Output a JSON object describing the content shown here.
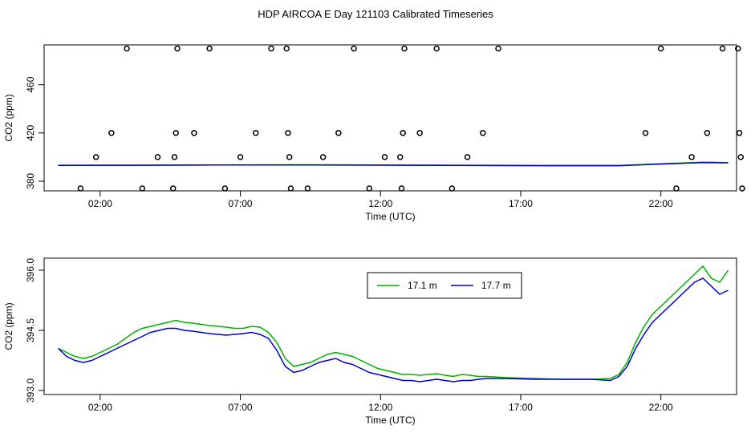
{
  "page_title": "HDP AIRCOA E  Day 121103  Calibrated Timeseries",
  "chart_data": [
    {
      "type": "scatter",
      "title": "",
      "xlabel": "Time (UTC)",
      "ylabel": "CO2 (ppm)",
      "x_unit": "hours UTC",
      "xlim": [
        0,
        24.7
      ],
      "ylim": [
        372,
        493
      ],
      "x_ticks": [
        2,
        7,
        12,
        17,
        22
      ],
      "x_tick_labels": [
        "02:00",
        "07:00",
        "12:00",
        "17:00",
        "22:00"
      ],
      "y_ticks": [
        380,
        420,
        460
      ],
      "y_tick_labels": [
        "380",
        "420",
        "460"
      ],
      "grid": false,
      "legend": "none",
      "points": [
        {
          "x": 1.3,
          "y": 374
        },
        {
          "x": 1.85,
          "y": 400
        },
        {
          "x": 2.4,
          "y": 420
        },
        {
          "x": 2.95,
          "y": 490
        },
        {
          "x": 3.5,
          "y": 374
        },
        {
          "x": 4.05,
          "y": 400
        },
        {
          "x": 4.6,
          "y": 374
        },
        {
          "x": 4.65,
          "y": 400
        },
        {
          "x": 4.7,
          "y": 420
        },
        {
          "x": 4.75,
          "y": 490
        },
        {
          "x": 5.35,
          "y": 420
        },
        {
          "x": 5.9,
          "y": 490
        },
        {
          "x": 6.45,
          "y": 374
        },
        {
          "x": 7.0,
          "y": 400
        },
        {
          "x": 7.55,
          "y": 420
        },
        {
          "x": 8.1,
          "y": 490
        },
        {
          "x": 8.65,
          "y": 490
        },
        {
          "x": 8.7,
          "y": 420
        },
        {
          "x": 8.75,
          "y": 400
        },
        {
          "x": 8.8,
          "y": 374
        },
        {
          "x": 9.4,
          "y": 374
        },
        {
          "x": 9.95,
          "y": 400
        },
        {
          "x": 10.5,
          "y": 420
        },
        {
          "x": 11.05,
          "y": 490
        },
        {
          "x": 11.6,
          "y": 374
        },
        {
          "x": 12.15,
          "y": 400
        },
        {
          "x": 12.7,
          "y": 400
        },
        {
          "x": 12.75,
          "y": 374
        },
        {
          "x": 12.8,
          "y": 420
        },
        {
          "x": 12.85,
          "y": 490
        },
        {
          "x": 13.4,
          "y": 420
        },
        {
          "x": 14.0,
          "y": 490
        },
        {
          "x": 14.55,
          "y": 374
        },
        {
          "x": 15.1,
          "y": 400
        },
        {
          "x": 15.65,
          "y": 420
        },
        {
          "x": 16.2,
          "y": 490
        },
        {
          "x": 21.45,
          "y": 420
        },
        {
          "x": 22.0,
          "y": 490
        },
        {
          "x": 22.55,
          "y": 374
        },
        {
          "x": 23.1,
          "y": 400
        },
        {
          "x": 23.65,
          "y": 420
        },
        {
          "x": 24.2,
          "y": 490
        },
        {
          "x": 24.75,
          "y": 490
        },
        {
          "x": 24.8,
          "y": 420
        },
        {
          "x": 24.85,
          "y": 400
        },
        {
          "x": 24.9,
          "y": 374
        }
      ],
      "series": [
        {
          "color": "#00b000",
          "x": [
            0.5,
            3,
            6,
            9,
            12,
            15,
            18,
            20.5,
            22,
            23.5,
            24.4
          ],
          "values": [
            393.2,
            393.3,
            393.5,
            393.6,
            393.4,
            393.2,
            393.0,
            393.0,
            394.5,
            395.8,
            395.5
          ]
        },
        {
          "color": "#0000c8",
          "x": [
            0.5,
            3,
            6,
            9,
            12,
            15,
            18,
            20.5,
            22,
            23.5,
            24.4
          ],
          "values": [
            393.1,
            393.2,
            393.4,
            393.5,
            393.3,
            393.1,
            392.9,
            392.9,
            394.2,
            395.5,
            395.2
          ]
        }
      ]
    },
    {
      "type": "line",
      "title": "",
      "xlabel": "Time (UTC)",
      "ylabel": "CO2 (ppm)",
      "x_unit": "hours UTC",
      "xlim": [
        0,
        24.7
      ],
      "ylim": [
        392.9,
        396.3
      ],
      "x_ticks": [
        2,
        7,
        12,
        17,
        22
      ],
      "x_tick_labels": [
        "02:00",
        "07:00",
        "12:00",
        "17:00",
        "22:00"
      ],
      "y_ticks": [
        393.0,
        394.5,
        396.0
      ],
      "y_tick_labels": [
        "393.0",
        "394.5",
        "396.0"
      ],
      "grid": false,
      "legend": "top-center",
      "series": [
        {
          "name": "17.1 m",
          "color": "#00b000",
          "x": [
            0.5,
            0.8,
            1.1,
            1.4,
            1.7,
            2.0,
            2.3,
            2.6,
            2.9,
            3.2,
            3.5,
            3.8,
            4.1,
            4.4,
            4.7,
            5.0,
            5.3,
            5.6,
            5.9,
            6.2,
            6.5,
            6.8,
            7.1,
            7.4,
            7.7,
            8.0,
            8.3,
            8.6,
            8.9,
            9.2,
            9.5,
            9.8,
            10.1,
            10.4,
            10.7,
            11.0,
            11.3,
            11.6,
            11.9,
            12.2,
            12.5,
            12.8,
            13.1,
            13.4,
            13.7,
            14.0,
            14.3,
            14.6,
            14.9,
            15.2,
            15.5,
            15.8,
            16.5,
            17.5,
            18.5,
            19.5,
            20.2,
            20.5,
            20.8,
            21.1,
            21.4,
            21.7,
            22.0,
            22.3,
            22.6,
            22.9,
            23.2,
            23.5,
            23.8,
            24.1,
            24.4
          ],
          "values": [
            394.05,
            393.95,
            393.85,
            393.8,
            393.85,
            393.95,
            394.05,
            394.15,
            394.3,
            394.45,
            394.55,
            394.6,
            394.65,
            394.7,
            394.75,
            394.7,
            394.68,
            394.65,
            394.62,
            394.6,
            394.58,
            394.55,
            394.55,
            394.6,
            394.58,
            394.45,
            394.2,
            393.8,
            393.6,
            393.65,
            393.7,
            393.8,
            393.9,
            393.95,
            393.9,
            393.85,
            393.75,
            393.65,
            393.55,
            393.5,
            393.45,
            393.4,
            393.4,
            393.38,
            393.4,
            393.42,
            393.38,
            393.35,
            393.4,
            393.38,
            393.35,
            393.35,
            393.32,
            393.3,
            393.28,
            393.28,
            393.3,
            393.4,
            393.7,
            394.2,
            394.6,
            394.9,
            395.1,
            395.3,
            395.5,
            395.7,
            395.9,
            396.1,
            395.8,
            395.7,
            396.0
          ]
        },
        {
          "name": "17.7 m",
          "color": "#0000c8",
          "x": [
            0.5,
            0.8,
            1.1,
            1.4,
            1.7,
            2.0,
            2.3,
            2.6,
            2.9,
            3.2,
            3.5,
            3.8,
            4.1,
            4.4,
            4.7,
            5.0,
            5.3,
            5.6,
            5.9,
            6.2,
            6.5,
            6.8,
            7.1,
            7.4,
            7.7,
            8.0,
            8.3,
            8.6,
            8.9,
            9.2,
            9.5,
            9.8,
            10.1,
            10.4,
            10.7,
            11.0,
            11.3,
            11.6,
            11.9,
            12.2,
            12.5,
            12.8,
            13.1,
            13.4,
            13.7,
            14.0,
            14.3,
            14.6,
            14.9,
            15.2,
            15.5,
            15.8,
            16.5,
            17.5,
            18.5,
            19.5,
            20.2,
            20.5,
            20.8,
            21.1,
            21.4,
            21.7,
            22.0,
            22.3,
            22.6,
            22.9,
            23.2,
            23.5,
            23.8,
            24.1,
            24.4
          ],
          "values": [
            394.05,
            393.85,
            393.75,
            393.7,
            393.75,
            393.85,
            393.95,
            394.05,
            394.15,
            394.25,
            394.35,
            394.45,
            394.5,
            394.55,
            394.55,
            394.5,
            394.48,
            394.45,
            394.42,
            394.4,
            394.38,
            394.4,
            394.42,
            394.45,
            394.4,
            394.3,
            394.0,
            393.6,
            393.45,
            393.5,
            393.6,
            393.7,
            393.75,
            393.8,
            393.7,
            393.65,
            393.55,
            393.45,
            393.4,
            393.35,
            393.3,
            393.25,
            393.25,
            393.22,
            393.25,
            393.28,
            393.25,
            393.22,
            393.25,
            393.25,
            393.28,
            393.3,
            393.3,
            393.28,
            393.28,
            393.28,
            393.25,
            393.35,
            393.6,
            394.05,
            394.4,
            394.7,
            394.9,
            395.1,
            395.3,
            395.5,
            395.7,
            395.8,
            395.6,
            395.4,
            395.5
          ]
        }
      ]
    }
  ]
}
